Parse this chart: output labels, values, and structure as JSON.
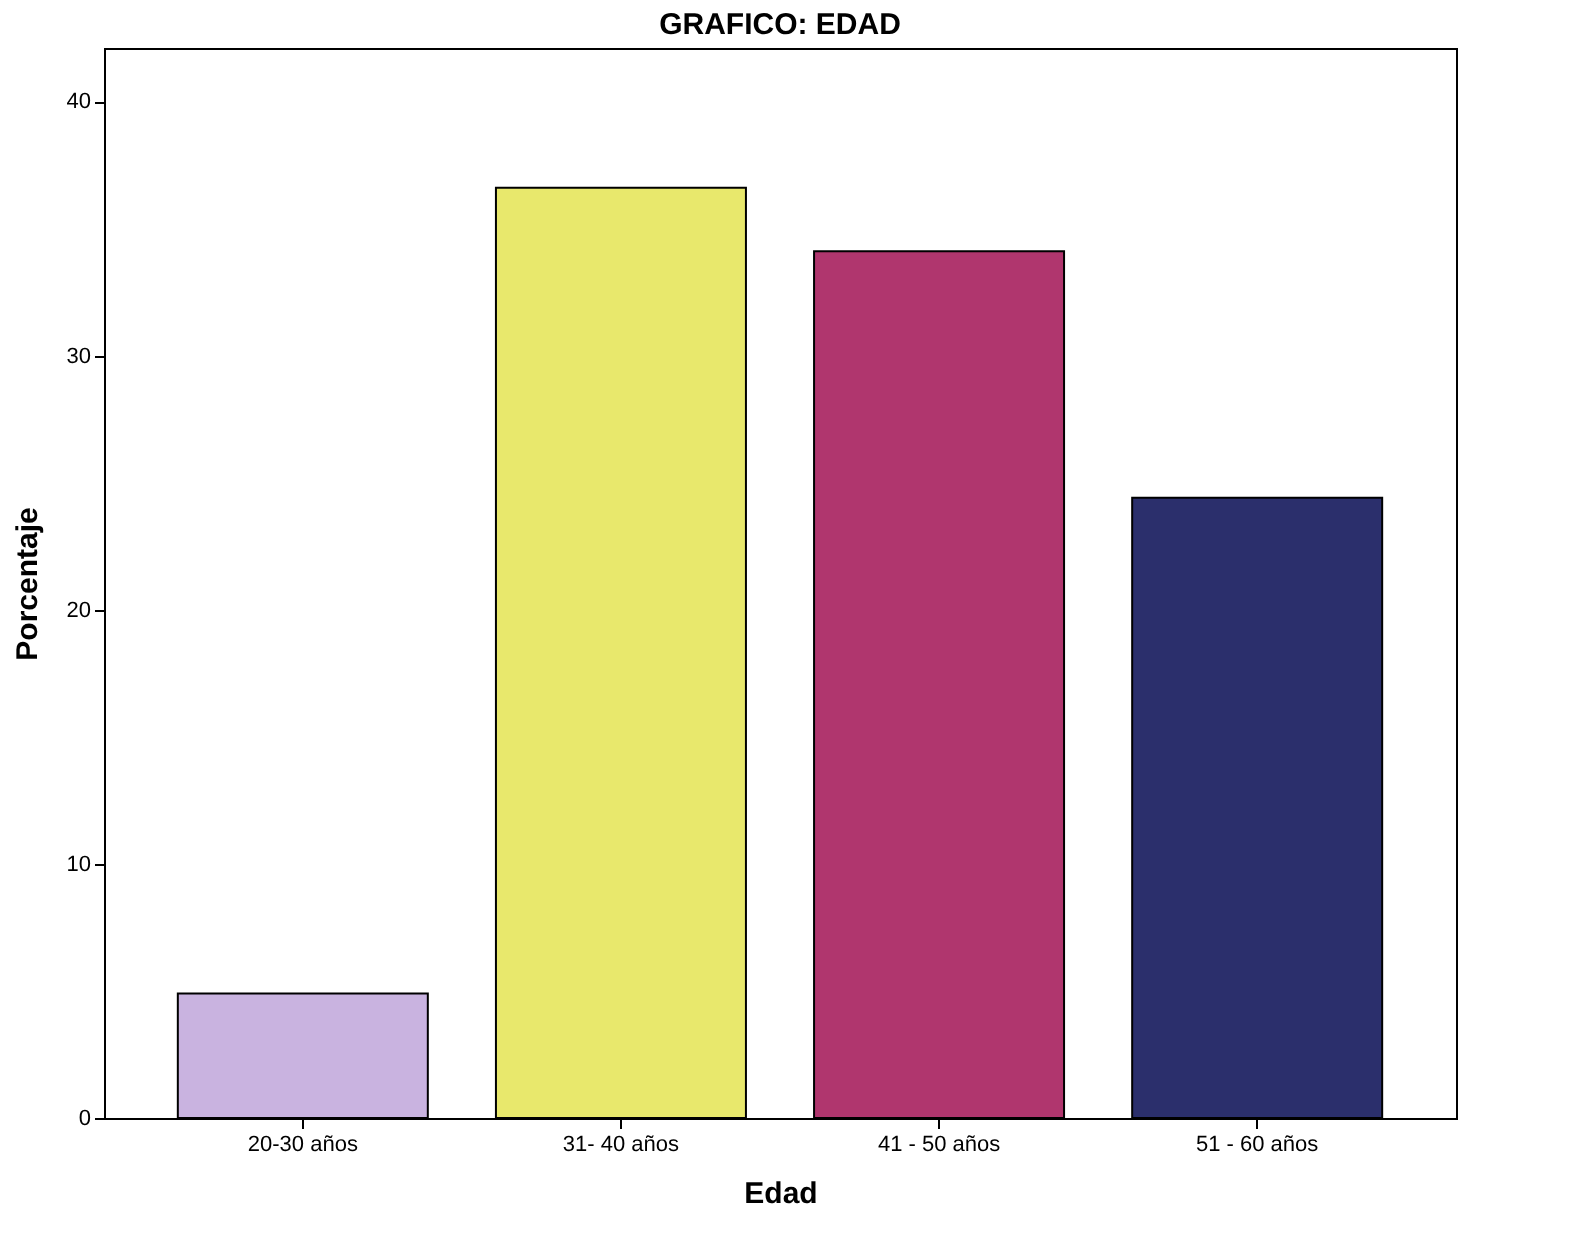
{
  "chart_data": {
    "type": "bar",
    "title": "GRAFICO: EDAD",
    "xlabel": "Edad",
    "ylabel": "Porcentaje",
    "categories": [
      "20-30 años",
      "31- 40 años",
      "41 - 50 años",
      "51 - 60 años"
    ],
    "values": [
      4.9,
      36.6,
      34.1,
      24.4
    ],
    "colors": [
      "#c9b3e0",
      "#e8e86c",
      "#b0366e",
      "#2b2f6c"
    ],
    "ylim": [
      0,
      42.1
    ],
    "yticks": [
      0,
      10,
      20,
      30,
      40
    ],
    "grid": false
  }
}
